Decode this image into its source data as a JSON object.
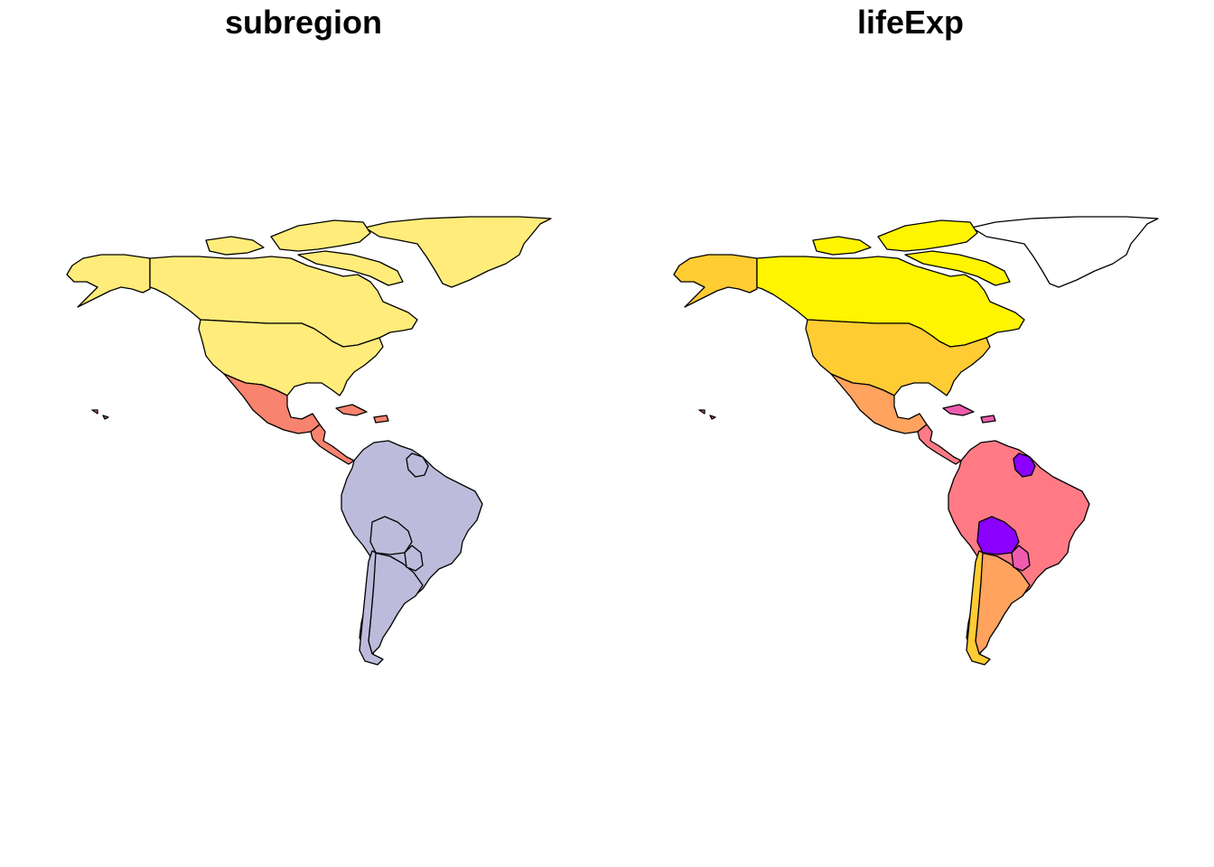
{
  "panels": [
    {
      "title": "subregion",
      "colors": {
        "greenland": "#FFEC7A",
        "canada": "#FFEC7A",
        "alaska": "#FFEC7A",
        "usa": "#FFEC7A",
        "arctic_islands": "#FFEC7A",
        "mexico": "#F8836E",
        "central_america": "#F8836E",
        "caribbean": "#F8836E",
        "south_america": "#BDBBDB",
        "bolivia": "#BDBBDB",
        "guianas": "#BDBBDB",
        "chile": "#BDBBDB",
        "argentina": "#BDBBDB",
        "paraguay": "#BDBBDB"
      }
    },
    {
      "title": "lifeExp",
      "colors": {
        "greenland": "#FFFFFF",
        "canada": "#FFF500",
        "alaska": "#FFCC33",
        "usa": "#FFCC33",
        "arctic_islands": "#FFF500",
        "mexico": "#FFA35E",
        "central_america": "#FF7A85",
        "caribbean": "#EE5CB0",
        "south_america": "#FF7A85",
        "bolivia": "#8B00FF",
        "guianas": "#8B00FF",
        "chile": "#FFCC33",
        "argentina": "#FFA35E",
        "paraguay": "#EE5CB0"
      }
    }
  ]
}
